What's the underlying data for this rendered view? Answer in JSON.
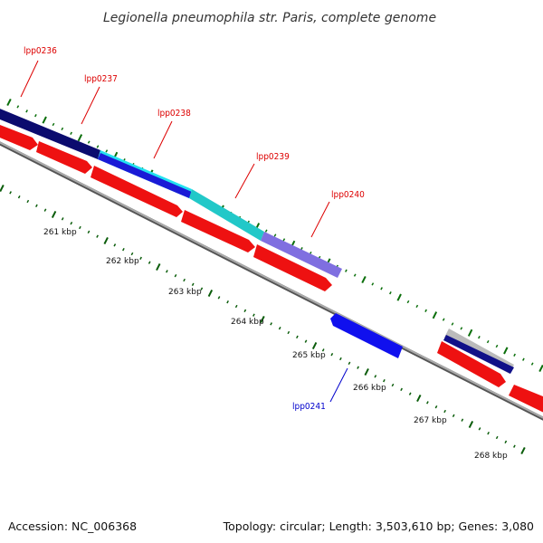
{
  "title": "Legionella pneumophila str. Paris, complete genome",
  "footer": {
    "accession": "Accession: NC_006368",
    "topology": "Topology: circular; Length: 3,503,610 bp; Genes: 3,080"
  },
  "colors": {
    "forward_label": "#dd0000",
    "reverse_label": "#0000cc",
    "forward_gene": "#ee1111",
    "backbone": "#888888",
    "tick_minor": "#0a5c0a",
    "tick_major": "#0a6e0a"
  },
  "scale_labels": [
    "261 kbp",
    "262 kbp",
    "263 kbp",
    "264 kbp",
    "265 kbp",
    "266 kbp",
    "267 kbp",
    "268 kbp"
  ],
  "gene_labels": [
    {
      "name": "lpp0236",
      "color": "#dd0000"
    },
    {
      "name": "lpp0237",
      "color": "#dd0000"
    },
    {
      "name": "lpp0238",
      "color": "#dd0000"
    },
    {
      "name": "lpp0239",
      "color": "#dd0000"
    },
    {
      "name": "lpp0240",
      "color": "#dd0000"
    },
    {
      "name": "lpp0241",
      "color": "#0000cc"
    }
  ],
  "feature_colors": [
    "#0b0b6e",
    "#22e0f0",
    "#1a1ad6",
    "#22c8c8",
    "#7f6fe0",
    "#111188",
    "#bbbbbb"
  ]
}
